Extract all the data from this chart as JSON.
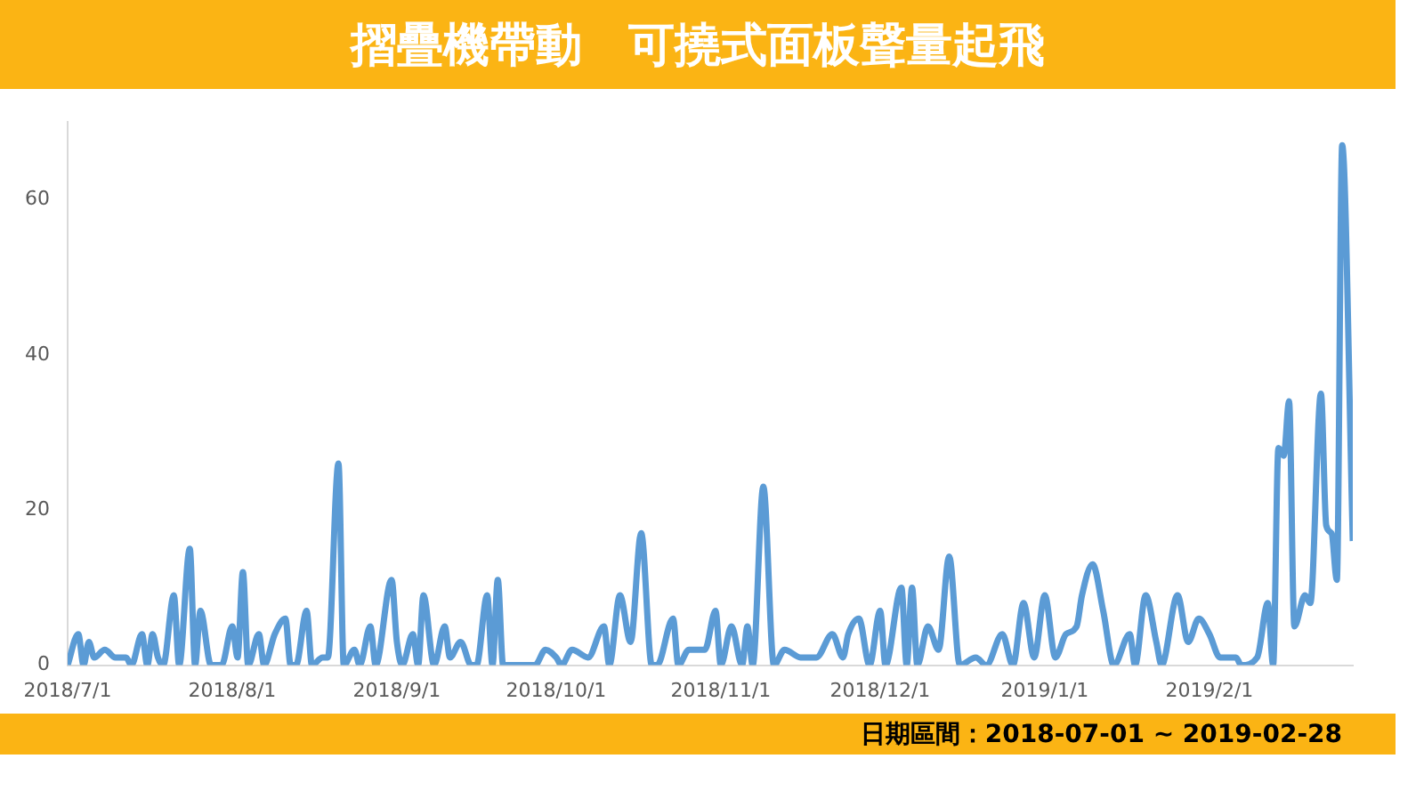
{
  "chart_data": {
    "type": "line",
    "title": "摺疊機帶動　可撓式面板聲量起飛",
    "annotations": [
      "日期區間：2018-07-01 ~ 2019-02-28"
    ],
    "x": [
      "2018-07-01",
      "2018-07-03",
      "2018-07-04",
      "2018-07-05",
      "2018-07-06",
      "2018-07-08",
      "2018-07-10",
      "2018-07-12",
      "2018-07-13",
      "2018-07-15",
      "2018-07-16",
      "2018-07-17",
      "2018-07-18",
      "2018-07-19",
      "2018-07-21",
      "2018-07-22",
      "2018-07-24",
      "2018-07-25",
      "2018-07-26",
      "2018-07-28",
      "2018-07-30",
      "2018-08-01",
      "2018-08-02",
      "2018-08-03",
      "2018-08-04",
      "2018-08-06",
      "2018-08-07",
      "2018-08-09",
      "2018-08-11",
      "2018-08-12",
      "2018-08-13",
      "2018-08-15",
      "2018-08-16",
      "2018-08-18",
      "2018-08-19",
      "2018-08-21",
      "2018-08-22",
      "2018-08-24",
      "2018-08-25",
      "2018-08-27",
      "2018-08-28",
      "2018-08-31",
      "2018-09-01",
      "2018-09-02",
      "2018-09-04",
      "2018-09-05",
      "2018-09-06",
      "2018-09-08",
      "2018-09-10",
      "2018-09-11",
      "2018-09-13",
      "2018-09-15",
      "2018-09-16",
      "2018-09-18",
      "2018-09-19",
      "2018-09-20",
      "2018-09-21",
      "2018-09-27",
      "2018-09-29",
      "2018-10-01",
      "2018-10-02",
      "2018-10-04",
      "2018-10-07",
      "2018-10-10",
      "2018-10-11",
      "2018-10-13",
      "2018-10-15",
      "2018-10-17",
      "2018-10-19",
      "2018-10-20",
      "2018-10-23",
      "2018-10-24",
      "2018-10-26",
      "2018-10-29",
      "2018-10-31",
      "2018-11-01",
      "2018-11-03",
      "2018-11-05",
      "2018-11-06",
      "2018-11-07",
      "2018-11-09",
      "2018-11-11",
      "2018-11-13",
      "2018-11-16",
      "2018-11-19",
      "2018-11-22",
      "2018-11-24",
      "2018-11-25",
      "2018-11-27",
      "2018-11-29",
      "2018-12-01",
      "2018-12-02",
      "2018-12-05",
      "2018-12-06",
      "2018-12-07",
      "2018-12-08",
      "2018-12-10",
      "2018-12-12",
      "2018-12-14",
      "2018-12-16",
      "2018-12-19",
      "2018-12-21",
      "2018-12-24",
      "2018-12-26",
      "2018-12-28",
      "2018-12-30",
      "2019-01-01",
      "2019-01-03",
      "2019-01-05",
      "2019-01-07",
      "2019-01-08",
      "2019-01-10",
      "2019-01-12",
      "2019-01-14",
      "2019-01-17",
      "2019-01-18",
      "2019-01-20",
      "2019-01-22",
      "2019-01-23",
      "2019-01-26",
      "2019-01-28",
      "2019-01-30",
      "2019-02-01",
      "2019-02-03",
      "2019-02-06",
      "2019-02-07",
      "2019-02-10",
      "2019-02-12",
      "2019-02-13",
      "2019-02-14",
      "2019-02-15",
      "2019-02-16",
      "2019-02-17",
      "2019-02-19",
      "2019-02-20",
      "2019-02-22",
      "2019-02-23",
      "2019-02-24",
      "2019-02-25",
      "2019-02-26",
      "2019-02-28"
    ],
    "series": [
      {
        "color": "#5b9bd5",
        "values": [
          0,
          4,
          0,
          3,
          1,
          2,
          1,
          1,
          0,
          4,
          0,
          4,
          1,
          0,
          9,
          0,
          15,
          0,
          7,
          0,
          0,
          5,
          1,
          12,
          0,
          4,
          0,
          4,
          6,
          0,
          0,
          7,
          0,
          1,
          1,
          26,
          0,
          2,
          0,
          5,
          0,
          11,
          3,
          0,
          4,
          0,
          9,
          0,
          5,
          1,
          3,
          0,
          0,
          9,
          0,
          11,
          0,
          0,
          2,
          1,
          0,
          2,
          1,
          5,
          0,
          9,
          3,
          17,
          0,
          0,
          6,
          0,
          2,
          2,
          7,
          0,
          5,
          0,
          5,
          0,
          23,
          0,
          2,
          1,
          1,
          4,
          1,
          4,
          6,
          0,
          7,
          0,
          10,
          0,
          10,
          0,
          5,
          2,
          14,
          0,
          1,
          0,
          4,
          0,
          8,
          1,
          9,
          1,
          4,
          5,
          9,
          13,
          7,
          0,
          4,
          0,
          9,
          3,
          0,
          9,
          3,
          6,
          4,
          1,
          1,
          0,
          1,
          8,
          0,
          28,
          27,
          34,
          5,
          9,
          8,
          35,
          18,
          17,
          11,
          67,
          16
        ]
      }
    ],
    "xlim": [
      "2018-07-01",
      "2019-02-28"
    ],
    "xticks": [
      {
        "value": "2018-07-01",
        "label": "2018/7/1"
      },
      {
        "value": "2018-08-01",
        "label": "2018/8/1"
      },
      {
        "value": "2018-09-01",
        "label": "2018/9/1"
      },
      {
        "value": "2018-10-01",
        "label": "2018/10/1"
      },
      {
        "value": "2018-11-01",
        "label": "2018/11/1"
      },
      {
        "value": "2018-12-01",
        "label": "2018/12/1"
      },
      {
        "value": "2019-01-01",
        "label": "2019/1/1"
      },
      {
        "value": "2019-02-01",
        "label": "2019/2/1"
      }
    ],
    "ylim": [
      0,
      70
    ],
    "yticks": [
      0,
      20,
      40,
      60
    ],
    "grid": false,
    "legend": false,
    "marker": "none",
    "line_style": "solid"
  }
}
